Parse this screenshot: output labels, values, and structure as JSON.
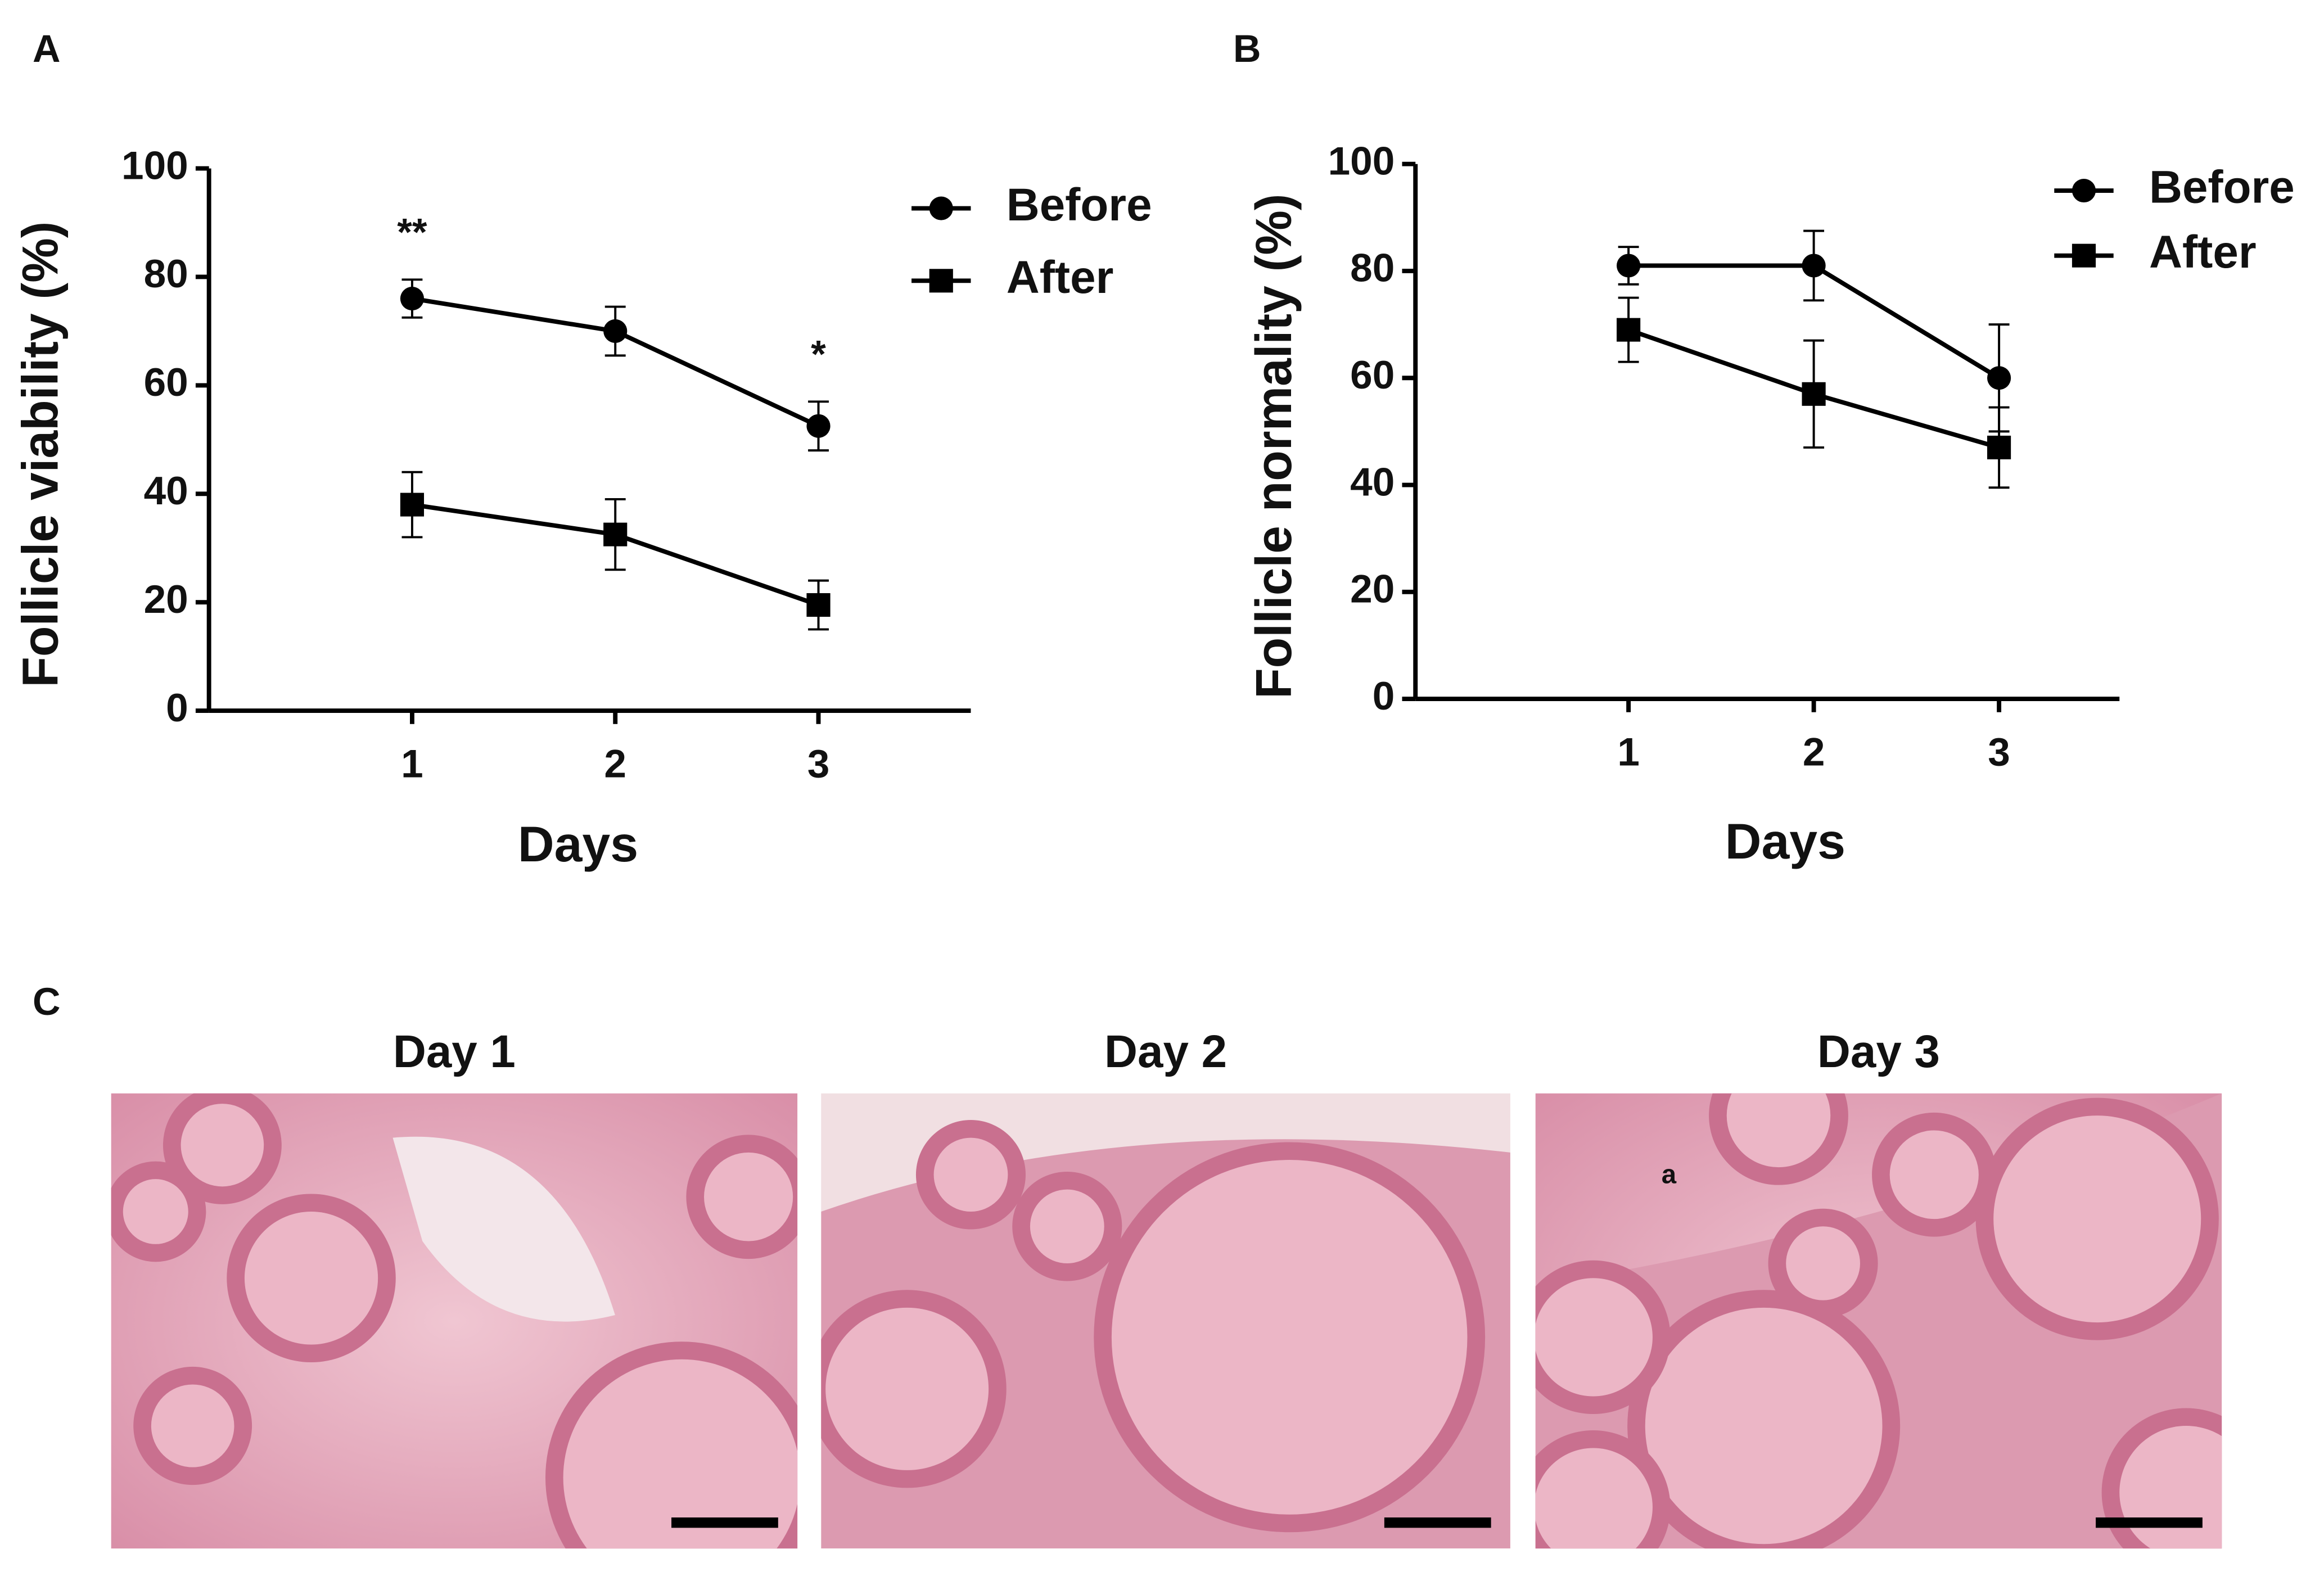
{
  "chart_data": [
    {
      "type": "line",
      "panel": "A",
      "ylabel": "Follicle viability (%)",
      "xlabel": "Days",
      "x": [
        1,
        2,
        3
      ],
      "xlim": [
        0,
        3.75
      ],
      "xticks": [
        1,
        2,
        3
      ],
      "ylim": [
        0,
        100
      ],
      "yticks": [
        0,
        20,
        40,
        60,
        80,
        100
      ],
      "series": [
        {
          "name": "Before",
          "color": "#000000",
          "marker": "circle",
          "values": [
            76,
            70,
            52.5
          ],
          "errors": [
            3.5,
            4.5,
            4.5
          ]
        },
        {
          "name": "After",
          "color": "#000000",
          "marker": "square",
          "values": [
            38,
            32.5,
            19.5
          ],
          "errors": [
            6,
            6.5,
            4.5
          ]
        }
      ],
      "annotations": [
        {
          "text": "**",
          "x": 1
        },
        {
          "text": "*",
          "x": 3
        }
      ]
    },
    {
      "type": "line",
      "panel": "B",
      "ylabel": "Follicle normality (%)",
      "xlabel": "Days",
      "x": [
        1,
        2,
        3
      ],
      "xlim": [
        -0.15,
        3.65
      ],
      "xticks": [
        1,
        2,
        3
      ],
      "ylim": [
        0,
        100
      ],
      "yticks": [
        0,
        20,
        40,
        60,
        80,
        100
      ],
      "series": [
        {
          "name": "Before",
          "color": "#000000",
          "marker": "circle",
          "values": [
            81,
            81,
            60
          ],
          "errors": [
            3.5,
            6.5,
            10
          ]
        },
        {
          "name": "After",
          "color": "#000000",
          "marker": "square",
          "values": [
            69,
            57,
            47
          ],
          "errors": [
            6,
            10,
            7.5
          ]
        }
      ]
    }
  ],
  "figure_c": {
    "panel": "C",
    "titles": [
      "Day 1",
      "Day 2",
      "Day 3"
    ],
    "annotation": "a"
  }
}
